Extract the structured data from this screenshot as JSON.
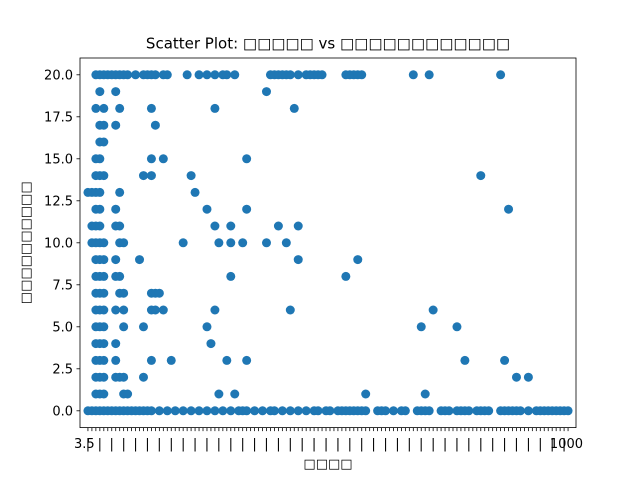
{
  "chart_data": {
    "type": "scatter",
    "title": "Scatter Plot: □□□□□ vs □□□□□□□□□□□□",
    "xlabel": "□□□□",
    "ylabel": "□□□□□□□□□□",
    "xlim": [
      -2,
      123
    ],
    "ylim": [
      -1,
      21
    ],
    "yticks": [
      0.0,
      2.5,
      5.0,
      7.5,
      10.0,
      12.5,
      15.0,
      17.5,
      20.0
    ],
    "ytick_labels": [
      "0.0",
      "2.5",
      "5.0",
      "7.5",
      "10.0",
      "12.5",
      "15.0",
      "17.5",
      "20.0"
    ],
    "xticks_note": "dense overlapping categorical tick labels",
    "xticks_start_label": "3.5",
    "xticks_end_label": "1000",
    "marker_color": "#1f77b4",
    "grid": false,
    "points": [
      [
        0,
        0
      ],
      [
        1,
        0
      ],
      [
        2,
        0
      ],
      [
        3,
        0
      ],
      [
        4,
        0
      ],
      [
        5,
        0
      ],
      [
        6,
        0
      ],
      [
        7,
        0
      ],
      [
        8,
        0
      ],
      [
        9,
        0
      ],
      [
        10,
        0
      ],
      [
        11,
        0
      ],
      [
        12,
        0
      ],
      [
        13,
        0
      ],
      [
        14,
        0
      ],
      [
        15,
        0
      ],
      [
        16,
        0
      ],
      [
        18,
        0
      ],
      [
        20,
        0
      ],
      [
        22,
        0
      ],
      [
        24,
        0
      ],
      [
        26,
        0
      ],
      [
        28,
        0
      ],
      [
        30,
        0
      ],
      [
        32,
        0
      ],
      [
        34,
        0
      ],
      [
        36,
        0
      ],
      [
        38,
        0
      ],
      [
        39,
        0
      ],
      [
        40,
        0
      ],
      [
        42,
        0
      ],
      [
        44,
        0
      ],
      [
        46,
        0
      ],
      [
        47,
        0
      ],
      [
        49,
        0
      ],
      [
        51,
        0
      ],
      [
        53,
        0
      ],
      [
        55,
        0
      ],
      [
        57,
        0
      ],
      [
        58,
        0
      ],
      [
        60,
        0
      ],
      [
        61,
        0
      ],
      [
        63,
        0
      ],
      [
        64,
        0
      ],
      [
        65,
        0
      ],
      [
        66,
        0
      ],
      [
        67,
        0
      ],
      [
        68,
        0
      ],
      [
        69,
        0
      ],
      [
        70,
        0
      ],
      [
        73,
        0
      ],
      [
        74,
        0
      ],
      [
        75,
        0
      ],
      [
        77,
        0
      ],
      [
        79,
        0
      ],
      [
        80,
        0
      ],
      [
        83,
        0
      ],
      [
        84,
        0
      ],
      [
        85,
        0
      ],
      [
        86,
        0
      ],
      [
        89,
        0
      ],
      [
        90,
        0
      ],
      [
        91,
        0
      ],
      [
        93,
        0
      ],
      [
        94,
        0
      ],
      [
        95,
        0
      ],
      [
        96,
        0
      ],
      [
        98,
        0
      ],
      [
        99,
        0
      ],
      [
        100,
        0
      ],
      [
        101,
        0
      ],
      [
        104,
        0
      ],
      [
        105,
        0
      ],
      [
        106,
        0
      ],
      [
        107,
        0
      ],
      [
        108,
        0
      ],
      [
        109,
        0
      ],
      [
        111,
        0
      ],
      [
        113,
        0
      ],
      [
        114,
        0
      ],
      [
        115,
        0
      ],
      [
        116,
        0
      ],
      [
        117,
        0
      ],
      [
        118,
        0
      ],
      [
        119,
        0
      ],
      [
        120,
        0
      ],
      [
        121,
        0
      ],
      [
        2,
        1
      ],
      [
        3,
        1
      ],
      [
        4,
        1
      ],
      [
        9,
        1
      ],
      [
        10,
        1
      ],
      [
        33,
        1
      ],
      [
        37,
        1
      ],
      [
        70,
        1
      ],
      [
        85,
        1
      ],
      [
        2,
        2
      ],
      [
        3,
        2
      ],
      [
        4,
        2
      ],
      [
        7,
        2
      ],
      [
        8,
        2
      ],
      [
        9,
        2
      ],
      [
        14,
        2
      ],
      [
        108,
        2
      ],
      [
        111,
        2
      ],
      [
        2,
        3
      ],
      [
        3,
        3
      ],
      [
        4,
        3
      ],
      [
        7,
        3
      ],
      [
        16,
        3
      ],
      [
        21,
        3
      ],
      [
        35,
        3
      ],
      [
        40,
        3
      ],
      [
        95,
        3
      ],
      [
        105,
        3
      ],
      [
        2,
        4
      ],
      [
        3,
        4
      ],
      [
        4,
        4
      ],
      [
        7,
        4
      ],
      [
        31,
        4
      ],
      [
        2,
        5
      ],
      [
        3,
        5
      ],
      [
        4,
        5
      ],
      [
        9,
        5
      ],
      [
        14,
        5
      ],
      [
        30,
        5
      ],
      [
        84,
        5
      ],
      [
        93,
        5
      ],
      [
        2,
        6
      ],
      [
        3,
        6
      ],
      [
        4,
        6
      ],
      [
        7,
        6
      ],
      [
        9,
        6
      ],
      [
        16,
        6
      ],
      [
        17,
        6
      ],
      [
        19,
        6
      ],
      [
        32,
        6
      ],
      [
        51,
        6
      ],
      [
        87,
        6
      ],
      [
        2,
        7
      ],
      [
        3,
        7
      ],
      [
        4,
        7
      ],
      [
        8,
        7
      ],
      [
        9,
        7
      ],
      [
        16,
        7
      ],
      [
        17,
        7
      ],
      [
        18,
        7
      ],
      [
        2,
        8
      ],
      [
        3,
        8
      ],
      [
        4,
        8
      ],
      [
        7,
        8
      ],
      [
        8,
        8
      ],
      [
        36,
        8
      ],
      [
        65,
        8
      ],
      [
        2,
        9
      ],
      [
        3,
        9
      ],
      [
        4,
        9
      ],
      [
        7,
        9
      ],
      [
        13,
        9
      ],
      [
        53,
        9
      ],
      [
        68,
        9
      ],
      [
        1,
        10
      ],
      [
        2,
        10
      ],
      [
        3,
        10
      ],
      [
        4,
        10
      ],
      [
        8,
        10
      ],
      [
        9,
        10
      ],
      [
        24,
        10
      ],
      [
        33,
        10
      ],
      [
        36,
        10
      ],
      [
        39,
        10
      ],
      [
        45,
        10
      ],
      [
        50,
        10
      ],
      [
        1,
        11
      ],
      [
        2,
        11
      ],
      [
        3,
        11
      ],
      [
        7,
        11
      ],
      [
        8,
        11
      ],
      [
        32,
        11
      ],
      [
        36,
        11
      ],
      [
        48,
        11
      ],
      [
        53,
        11
      ],
      [
        2,
        12
      ],
      [
        3,
        12
      ],
      [
        7,
        12
      ],
      [
        30,
        12
      ],
      [
        40,
        12
      ],
      [
        106,
        12
      ],
      [
        0,
        13
      ],
      [
        1,
        13
      ],
      [
        2,
        13
      ],
      [
        3,
        13
      ],
      [
        8,
        13
      ],
      [
        27,
        13
      ],
      [
        2,
        14
      ],
      [
        3,
        14
      ],
      [
        4,
        14
      ],
      [
        14,
        14
      ],
      [
        16,
        14
      ],
      [
        26,
        14
      ],
      [
        99,
        14
      ],
      [
        2,
        15
      ],
      [
        3,
        15
      ],
      [
        16,
        15
      ],
      [
        19,
        15
      ],
      [
        40,
        15
      ],
      [
        3,
        16
      ],
      [
        4,
        16
      ],
      [
        3,
        17
      ],
      [
        4,
        17
      ],
      [
        7,
        17
      ],
      [
        17,
        17
      ],
      [
        2,
        18
      ],
      [
        4,
        18
      ],
      [
        8,
        18
      ],
      [
        16,
        18
      ],
      [
        32,
        18
      ],
      [
        52,
        18
      ],
      [
        3,
        19
      ],
      [
        7,
        19
      ],
      [
        45,
        19
      ],
      [
        2,
        20
      ],
      [
        3,
        20
      ],
      [
        4,
        20
      ],
      [
        5,
        20
      ],
      [
        6,
        20
      ],
      [
        7,
        20
      ],
      [
        8,
        20
      ],
      [
        9,
        20
      ],
      [
        10,
        20
      ],
      [
        12,
        20
      ],
      [
        14,
        20
      ],
      [
        15,
        20
      ],
      [
        16,
        20
      ],
      [
        17,
        20
      ],
      [
        19,
        20
      ],
      [
        20,
        20
      ],
      [
        25,
        20
      ],
      [
        28,
        20
      ],
      [
        30,
        20
      ],
      [
        32,
        20
      ],
      [
        34,
        20
      ],
      [
        35,
        20
      ],
      [
        37,
        20
      ],
      [
        46,
        20
      ],
      [
        47,
        20
      ],
      [
        48,
        20
      ],
      [
        49,
        20
      ],
      [
        50,
        20
      ],
      [
        51,
        20
      ],
      [
        53,
        20
      ],
      [
        55,
        20
      ],
      [
        56,
        20
      ],
      [
        57,
        20
      ],
      [
        58,
        20
      ],
      [
        59,
        20
      ],
      [
        65,
        20
      ],
      [
        66,
        20
      ],
      [
        67,
        20
      ],
      [
        68,
        20
      ],
      [
        69,
        20
      ],
      [
        82,
        20
      ],
      [
        86,
        20
      ],
      [
        104,
        20
      ]
    ]
  }
}
